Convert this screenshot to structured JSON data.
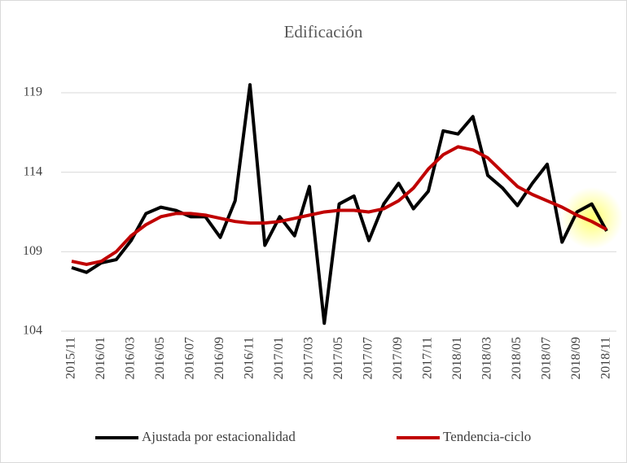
{
  "chart_data": {
    "type": "line",
    "title": "Edificación",
    "categories": [
      "2015/11",
      null,
      "2016/01",
      null,
      "2016/03",
      null,
      "2016/05",
      null,
      "2016/07",
      null,
      "2016/09",
      null,
      "2016/11",
      null,
      "2017/01",
      null,
      "2017/03",
      null,
      "2017/05",
      null,
      "2017/07",
      null,
      "2017/09",
      null,
      "2017/11",
      null,
      "2018/01",
      null,
      "2018/03",
      null,
      "2018/05",
      null,
      "2018/07",
      null,
      "2018/09",
      null,
      "2018/11"
    ],
    "series": [
      {
        "name": "Ajustada por estacionalidad",
        "color": "#000000",
        "values": [
          108.0,
          107.7,
          108.3,
          108.5,
          109.7,
          111.4,
          111.8,
          111.6,
          111.2,
          111.2,
          109.9,
          112.2,
          119.5,
          109.4,
          111.2,
          110.0,
          113.1,
          104.5,
          112.0,
          112.5,
          109.7,
          112.0,
          113.3,
          111.7,
          112.8,
          116.6,
          116.4,
          117.5,
          113.8,
          113.0,
          111.9,
          113.3,
          114.5,
          109.6,
          111.5,
          112.0,
          110.3
        ]
      },
      {
        "name": "Tendencia-ciclo",
        "color": "#c00000",
        "values": [
          108.4,
          108.2,
          108.4,
          109.0,
          110.0,
          110.7,
          111.2,
          111.4,
          111.4,
          111.3,
          111.1,
          110.9,
          110.8,
          110.8,
          110.9,
          111.1,
          111.3,
          111.5,
          111.6,
          111.6,
          111.5,
          111.7,
          112.2,
          113.0,
          114.2,
          115.1,
          115.6,
          115.4,
          114.9,
          114.0,
          113.1,
          112.6,
          112.2,
          111.8,
          111.3,
          110.9,
          110.4
        ]
      }
    ],
    "ylim": [
      104,
      120
    ],
    "yticks": [
      104,
      109,
      114,
      119
    ],
    "grid": true,
    "legend": "bottom"
  }
}
